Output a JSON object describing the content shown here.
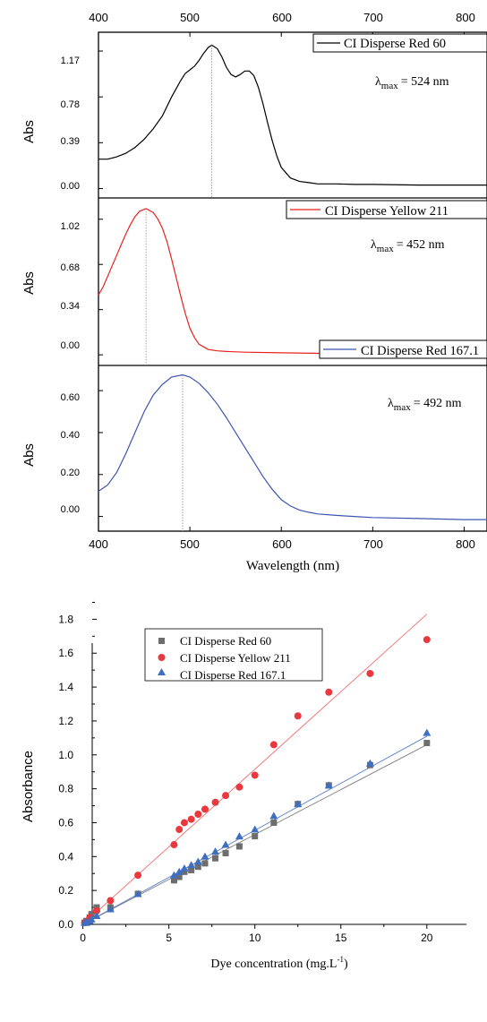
{
  "chart_data": [
    {
      "type": "line",
      "panels": [
        {
          "series_name": "CI Disperse Red 60",
          "color": "#000000",
          "ylabel": "Abs",
          "ylim": [
            -0.08,
            1.33
          ],
          "yticks": [
            0.0,
            0.39,
            0.78,
            1.17
          ],
          "ytick_labels": [
            "0.00",
            "0.39",
            "0.78",
            "1.17"
          ],
          "annotation_prefix": "λ",
          "annotation_sub": "max",
          "annotation_value": "= 524 nm",
          "lambda_max": 524,
          "x": [
            400,
            410,
            420,
            430,
            440,
            450,
            460,
            470,
            480,
            490,
            495,
            500,
            505,
            510,
            515,
            520,
            524,
            530,
            535,
            540,
            545,
            550,
            555,
            560,
            565,
            570,
            575,
            580,
            585,
            590,
            595,
            600,
            610,
            620,
            630,
            640,
            660,
            680,
            700,
            750,
            800,
            825
          ],
          "y": [
            0.25,
            0.25,
            0.27,
            0.3,
            0.35,
            0.42,
            0.51,
            0.62,
            0.78,
            0.92,
            0.98,
            1.01,
            1.04,
            1.09,
            1.15,
            1.2,
            1.22,
            1.19,
            1.12,
            1.03,
            0.97,
            0.95,
            0.97,
            1.0,
            1.0,
            0.96,
            0.86,
            0.72,
            0.56,
            0.41,
            0.28,
            0.18,
            0.09,
            0.06,
            0.05,
            0.04,
            0.04,
            0.035,
            0.035,
            0.03,
            0.03,
            0.03
          ]
        },
        {
          "series_name": "CI Disperse Yellow 211",
          "color": "#e8231f",
          "ylabel": "Abs",
          "ylim": [
            -0.08,
            1.18
          ],
          "yticks": [
            0.0,
            0.34,
            0.68,
            1.02
          ],
          "ytick_labels": [
            "0.00",
            "0.34",
            "0.68",
            "1.02"
          ],
          "annotation_prefix": "λ",
          "annotation_sub": "max",
          "annotation_value": "= 452 nm",
          "lambda_max": 452,
          "x": [
            400,
            405,
            410,
            415,
            420,
            425,
            430,
            435,
            440,
            445,
            452,
            460,
            465,
            470,
            475,
            480,
            485,
            490,
            495,
            500,
            505,
            510,
            515,
            520,
            530,
            540,
            560,
            600,
            650,
            700,
            750,
            800,
            825
          ],
          "y": [
            0.45,
            0.51,
            0.59,
            0.67,
            0.75,
            0.83,
            0.91,
            0.98,
            1.04,
            1.08,
            1.1,
            1.07,
            1.02,
            0.95,
            0.85,
            0.72,
            0.58,
            0.44,
            0.31,
            0.2,
            0.13,
            0.08,
            0.06,
            0.04,
            0.03,
            0.025,
            0.02,
            0.015,
            0.01,
            0.01,
            0.005,
            0.005,
            0.005
          ]
        },
        {
          "series_name": "CI Disperse Red 167.1",
          "color": "#3e55b0",
          "ylabel": "Abs",
          "ylim": [
            -0.07,
            0.72
          ],
          "yticks": [
            0.0,
            0.2,
            0.4,
            0.6
          ],
          "ytick_labels": [
            "0.00",
            "0.20",
            "0.40",
            "0.60"
          ],
          "annotation_prefix": "λ",
          "annotation_sub": "max",
          "annotation_value": "= 492 nm",
          "lambda_max": 492,
          "x": [
            400,
            410,
            420,
            430,
            440,
            450,
            460,
            470,
            480,
            492,
            500,
            510,
            520,
            530,
            540,
            550,
            560,
            570,
            580,
            590,
            600,
            610,
            620,
            630,
            640,
            660,
            680,
            700,
            750,
            800,
            825
          ],
          "y": [
            0.12,
            0.15,
            0.21,
            0.3,
            0.4,
            0.5,
            0.58,
            0.63,
            0.665,
            0.675,
            0.665,
            0.635,
            0.59,
            0.535,
            0.47,
            0.4,
            0.33,
            0.26,
            0.19,
            0.13,
            0.08,
            0.05,
            0.03,
            0.02,
            0.012,
            0.005,
            0.0,
            -0.005,
            -0.01,
            -0.015,
            -0.015
          ]
        }
      ],
      "xlim": [
        400,
        825
      ],
      "xticks": [
        400,
        500,
        600,
        700,
        800
      ],
      "xtick_labels": [
        "400",
        "500",
        "600",
        "700",
        "800"
      ],
      "xlabel": "Wavelength (nm)"
    },
    {
      "type": "scatter",
      "xlabel": "Dye concentration (mg.L",
      "xlabel_sup": "-1",
      "xlabel_tail": ")",
      "ylabel": "Absorbance",
      "xlim": [
        -0.5,
        22.3
      ],
      "ylim": [
        0.0,
        1.95
      ],
      "xticks": [
        0,
        5,
        10,
        15,
        20
      ],
      "xtick_labels": [
        "0",
        "5",
        "10",
        "15",
        "20"
      ],
      "yticks": [
        0.0,
        0.2,
        0.4,
        0.6,
        0.8,
        1.0,
        1.2,
        1.4,
        1.6,
        1.8
      ],
      "ytick_labels": [
        "0.0",
        "0.2",
        "0.4",
        "0.6",
        "0.8",
        "1.0",
        "1.2",
        "1.4",
        "1.6",
        "1.8"
      ],
      "legend": "top-left",
      "series": [
        {
          "name": "CI Disperse Red 60",
          "marker": "square",
          "color": "#6d6d6d",
          "fit_color": "#808080",
          "fit": [
            0.053,
            0.0
          ],
          "x": [
            0.1,
            0.2,
            0.4,
            0.5,
            0.8,
            1.6,
            3.2,
            5.3,
            5.6,
            5.9,
            6.3,
            6.7,
            7.1,
            7.7,
            8.3,
            9.1,
            10.0,
            11.1,
            12.5,
            14.3,
            16.7,
            20.0
          ],
          "y": [
            0.01,
            0.02,
            0.04,
            0.06,
            0.1,
            0.1,
            0.18,
            0.26,
            0.28,
            0.31,
            0.32,
            0.34,
            0.36,
            0.39,
            0.42,
            0.46,
            0.52,
            0.6,
            0.71,
            0.82,
            0.94,
            1.07
          ]
        },
        {
          "name": "CI Disperse Yellow 211",
          "marker": "circle",
          "color": "#e8393e",
          "fit_color": "#f07070",
          "fit": [
            0.0915,
            0.0
          ],
          "x": [
            0.1,
            0.4,
            0.8,
            1.6,
            3.2,
            5.3,
            5.6,
            5.9,
            6.3,
            6.7,
            7.1,
            7.7,
            8.3,
            9.1,
            10.0,
            11.1,
            12.5,
            14.3,
            16.7,
            20.0
          ],
          "y": [
            0.01,
            0.04,
            0.08,
            0.14,
            0.29,
            0.47,
            0.56,
            0.6,
            0.62,
            0.65,
            0.68,
            0.72,
            0.76,
            0.81,
            0.88,
            1.06,
            1.23,
            1.37,
            1.48,
            1.68
          ]
        },
        {
          "name": "CI Disperse Red 167.1",
          "marker": "triangle",
          "color": "#3f6fc0",
          "fit_color": "#5b7fcc",
          "fit": [
            0.0555,
            0.0
          ],
          "x": [
            0.1,
            0.2,
            0.4,
            0.5,
            0.8,
            1.6,
            3.2,
            5.3,
            5.6,
            5.9,
            6.3,
            6.7,
            7.1,
            7.7,
            8.3,
            9.1,
            10.0,
            11.1,
            12.5,
            14.3,
            16.7,
            20.0
          ],
          "y": [
            0.01,
            0.01,
            0.02,
            0.03,
            0.05,
            0.09,
            0.18,
            0.29,
            0.31,
            0.33,
            0.35,
            0.37,
            0.4,
            0.43,
            0.47,
            0.52,
            0.56,
            0.64,
            0.71,
            0.82,
            0.95,
            1.13
          ]
        }
      ]
    }
  ]
}
